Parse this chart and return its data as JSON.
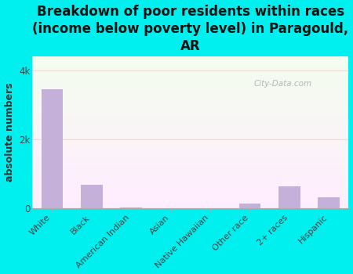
{
  "categories": [
    "White",
    "Black",
    "American Indian",
    "Asian",
    "Native Hawaiian",
    "Other race",
    "2+ races",
    "Hispanic"
  ],
  "values": [
    3450,
    680,
    18,
    0,
    0,
    140,
    640,
    320
  ],
  "bar_color": "#c4b0d8",
  "title": "Breakdown of poor residents within races\n(income below poverty level) in Paragould,\nAR",
  "ylabel": "absolute numbers",
  "ylim": [
    0,
    4400
  ],
  "ytick_vals": [
    0,
    2000,
    4000
  ],
  "ytick_labels": [
    "0",
    "2k",
    "4k"
  ],
  "background_color": "#00f0f0",
  "watermark": "City-Data.com",
  "title_fontsize": 12,
  "axis_label_fontsize": 9,
  "tick_fontsize": 8.5
}
